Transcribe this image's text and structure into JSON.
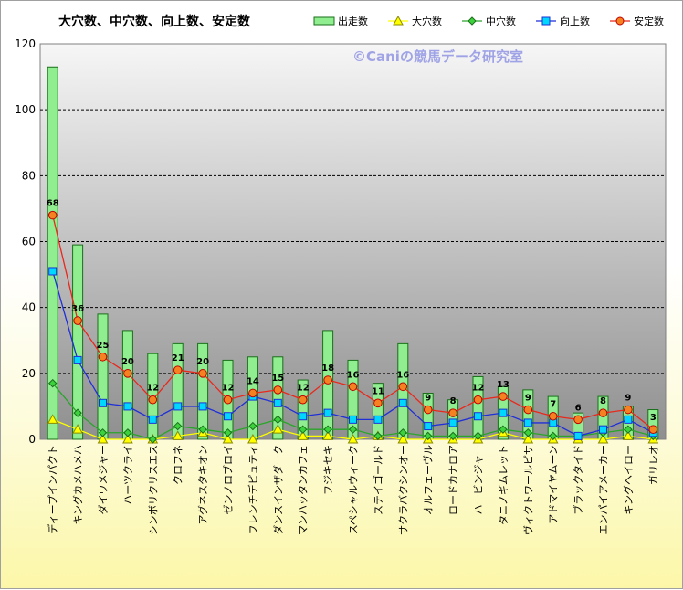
{
  "chart_data": {
    "type": "bar",
    "title": "大穴数、中穴数、向上数、安定数",
    "watermark": "©Caniの競馬データ研究室",
    "ylim": [
      0,
      120
    ],
    "yticks": [
      0,
      20,
      40,
      60,
      80,
      100,
      120
    ],
    "grid": true,
    "legend_position": "top-right",
    "categories": [
      "ディープインパクト",
      "キングカメハメハ",
      "ダイワメジャー",
      "ハーツクライ",
      "シンボリクリスエス",
      "クロフネ",
      "アグネスタキオン",
      "ゼンノロブロイ",
      "フレンチデピュティ",
      "ダンスインザダーク",
      "マンハッタンカフェ",
      "フジキセキ",
      "スペシャルウィーク",
      "ステイゴールド",
      "サクラバクシンオー",
      "オルフェーヴル",
      "ロードカナロア",
      "ハービンジャー",
      "タニノギムレット",
      "ヴィクトワールピサ",
      "アドマイヤムーン",
      "ブラックタイド",
      "エンパイアメーカー",
      "キングヘイロー",
      "ガリレオ"
    ],
    "series": [
      {
        "name": "出走数",
        "kind": "bar",
        "color": "#90ee90",
        "values": [
          113,
          59,
          38,
          33,
          26,
          29,
          29,
          24,
          25,
          25,
          18,
          33,
          24,
          17,
          29,
          14,
          12,
          19,
          16,
          15,
          13,
          8,
          13,
          10,
          9
        ]
      },
      {
        "name": "大穴数",
        "kind": "line",
        "color": "#ffff00",
        "values": [
          6,
          3,
          0,
          0,
          0,
          1,
          2,
          0,
          0,
          3,
          1,
          1,
          0,
          1,
          0,
          0,
          0,
          0,
          2,
          0,
          0,
          0,
          0,
          1,
          0
        ]
      },
      {
        "name": "中穴数",
        "kind": "line",
        "color": "#2aa52a",
        "values": [
          17,
          8,
          2,
          2,
          0,
          4,
          3,
          2,
          4,
          6,
          3,
          3,
          3,
          1,
          2,
          1,
          1,
          1,
          3,
          2,
          1,
          1,
          2,
          3,
          1
        ]
      },
      {
        "name": "向上数",
        "kind": "line",
        "color": "#1f2fd6",
        "values": [
          51,
          24,
          11,
          10,
          6,
          10,
          10,
          7,
          13,
          11,
          7,
          8,
          6,
          6,
          11,
          4,
          5,
          7,
          8,
          5,
          5,
          1,
          3,
          6,
          2
        ]
      },
      {
        "name": "安定数",
        "kind": "line",
        "color": "#e8281b",
        "values": [
          68,
          36,
          25,
          20,
          12,
          21,
          20,
          12,
          14,
          15,
          12,
          18,
          16,
          11,
          16,
          9,
          8,
          12,
          13,
          9,
          7,
          6,
          8,
          9,
          3
        ]
      }
    ]
  }
}
